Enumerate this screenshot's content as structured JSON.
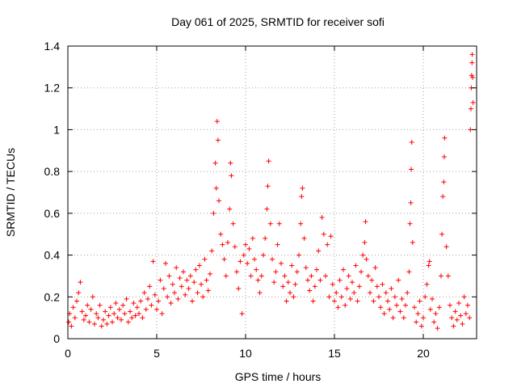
{
  "chart_data": {
    "type": "scatter",
    "title": "Day 061 of 2025, SRMTID for receiver sofi",
    "xlabel": "GPS time / hours",
    "ylabel": "SRMTID / TECUs",
    "xlim": [
      0,
      23
    ],
    "ylim": [
      0,
      1.4
    ],
    "x_ticks": [
      0,
      5,
      10,
      15,
      20
    ],
    "x_tick_labels": [
      "0",
      "5",
      "10",
      "15",
      "20"
    ],
    "y_ticks": [
      0,
      0.2,
      0.4,
      0.6,
      0.8,
      1.0,
      1.2,
      1.4
    ],
    "y_tick_labels": [
      "0",
      "0.2",
      "0.4",
      "0.6",
      "0.8",
      "1",
      "1.2",
      "1.4"
    ],
    "grid": true,
    "marker": "+",
    "color": "#ff0000",
    "series": [
      {
        "name": "SRMTID",
        "points": [
          [
            0.05,
            0.08
          ],
          [
            0.1,
            0.12
          ],
          [
            0.2,
            0.06
          ],
          [
            0.3,
            0.15
          ],
          [
            0.4,
            0.1
          ],
          [
            0.5,
            0.18
          ],
          [
            0.6,
            0.22
          ],
          [
            0.7,
            0.27
          ],
          [
            0.8,
            0.13
          ],
          [
            0.9,
            0.09
          ],
          [
            1.0,
            0.11
          ],
          [
            1.1,
            0.16
          ],
          [
            1.2,
            0.08
          ],
          [
            1.3,
            0.14
          ],
          [
            1.4,
            0.2
          ],
          [
            1.5,
            0.07
          ],
          [
            1.6,
            0.12
          ],
          [
            1.7,
            0.1
          ],
          [
            1.8,
            0.16
          ],
          [
            1.9,
            0.06
          ],
          [
            2.0,
            0.09
          ],
          [
            2.1,
            0.13
          ],
          [
            2.2,
            0.07
          ],
          [
            2.3,
            0.11
          ],
          [
            2.4,
            0.15
          ],
          [
            2.5,
            0.08
          ],
          [
            2.6,
            0.12
          ],
          [
            2.7,
            0.17
          ],
          [
            2.8,
            0.1
          ],
          [
            2.9,
            0.14
          ],
          [
            3.0,
            0.09
          ],
          [
            3.1,
            0.16
          ],
          [
            3.2,
            0.12
          ],
          [
            3.3,
            0.19
          ],
          [
            3.4,
            0.08
          ],
          [
            3.5,
            0.13
          ],
          [
            3.6,
            0.1
          ],
          [
            3.7,
            0.17
          ],
          [
            3.8,
            0.11
          ],
          [
            3.9,
            0.15
          ],
          [
            4.0,
            0.12
          ],
          [
            4.1,
            0.18
          ],
          [
            4.2,
            0.1
          ],
          [
            4.3,
            0.22
          ],
          [
            4.4,
            0.14
          ],
          [
            4.5,
            0.19
          ],
          [
            4.6,
            0.25
          ],
          [
            4.7,
            0.16
          ],
          [
            4.8,
            0.37
          ],
          [
            4.9,
            0.21
          ],
          [
            5.0,
            0.14
          ],
          [
            5.1,
            0.18
          ],
          [
            5.2,
            0.28
          ],
          [
            5.3,
            0.12
          ],
          [
            5.4,
            0.24
          ],
          [
            5.5,
            0.36
          ],
          [
            5.6,
            0.2
          ],
          [
            5.7,
            0.3
          ],
          [
            5.8,
            0.17
          ],
          [
            5.9,
            0.26
          ],
          [
            6.0,
            0.22
          ],
          [
            6.1,
            0.34
          ],
          [
            6.2,
            0.19
          ],
          [
            6.3,
            0.29
          ],
          [
            6.4,
            0.25
          ],
          [
            6.5,
            0.32
          ],
          [
            6.6,
            0.21
          ],
          [
            6.7,
            0.28
          ],
          [
            6.8,
            0.24
          ],
          [
            6.9,
            0.3
          ],
          [
            7.0,
            0.18
          ],
          [
            7.1,
            0.27
          ],
          [
            7.2,
            0.33
          ],
          [
            7.3,
            0.22
          ],
          [
            7.4,
            0.35
          ],
          [
            7.5,
            0.26
          ],
          [
            7.6,
            0.2
          ],
          [
            7.7,
            0.38
          ],
          [
            7.8,
            0.28
          ],
          [
            7.9,
            0.23
          ],
          [
            8.0,
            0.31
          ],
          [
            8.1,
            0.42
          ],
          [
            8.2,
            0.6
          ],
          [
            8.3,
            0.84
          ],
          [
            8.35,
            0.72
          ],
          [
            8.4,
            1.04
          ],
          [
            8.45,
            0.95
          ],
          [
            8.5,
            0.66
          ],
          [
            8.6,
            0.5
          ],
          [
            8.7,
            0.45
          ],
          [
            8.8,
            0.38
          ],
          [
            8.9,
            0.3
          ],
          [
            9.0,
            0.46
          ],
          [
            9.1,
            0.62
          ],
          [
            9.15,
            0.84
          ],
          [
            9.2,
            0.78
          ],
          [
            9.3,
            0.55
          ],
          [
            9.4,
            0.44
          ],
          [
            9.5,
            0.32
          ],
          [
            9.6,
            0.24
          ],
          [
            9.7,
            0.37
          ],
          [
            9.8,
            0.12
          ],
          [
            9.9,
            0.4
          ],
          [
            10.0,
            0.45
          ],
          [
            10.1,
            0.36
          ],
          [
            10.2,
            0.43
          ],
          [
            10.3,
            0.3
          ],
          [
            10.4,
            0.48
          ],
          [
            10.5,
            0.38
          ],
          [
            10.6,
            0.33
          ],
          [
            10.7,
            0.28
          ],
          [
            10.8,
            0.22
          ],
          [
            10.9,
            0.3
          ],
          [
            11.0,
            0.4
          ],
          [
            11.1,
            0.48
          ],
          [
            11.2,
            0.62
          ],
          [
            11.25,
            0.73
          ],
          [
            11.3,
            0.85
          ],
          [
            11.4,
            0.55
          ],
          [
            11.5,
            0.38
          ],
          [
            11.6,
            0.27
          ],
          [
            11.7,
            0.32
          ],
          [
            11.8,
            0.45
          ],
          [
            11.9,
            0.55
          ],
          [
            12.0,
            0.36
          ],
          [
            12.1,
            0.25
          ],
          [
            12.2,
            0.3
          ],
          [
            12.3,
            0.18
          ],
          [
            12.4,
            0.27
          ],
          [
            12.5,
            0.22
          ],
          [
            12.6,
            0.35
          ],
          [
            12.7,
            0.2
          ],
          [
            12.8,
            0.26
          ],
          [
            12.9,
            0.32
          ],
          [
            13.0,
            0.4
          ],
          [
            13.1,
            0.55
          ],
          [
            13.15,
            0.68
          ],
          [
            13.2,
            0.72
          ],
          [
            13.3,
            0.48
          ],
          [
            13.4,
            0.34
          ],
          [
            13.5,
            0.28
          ],
          [
            13.6,
            0.23
          ],
          [
            13.7,
            0.3
          ],
          [
            13.8,
            0.18
          ],
          [
            13.9,
            0.25
          ],
          [
            14.0,
            0.33
          ],
          [
            14.1,
            0.42
          ],
          [
            14.2,
            0.28
          ],
          [
            14.3,
            0.58
          ],
          [
            14.4,
            0.5
          ],
          [
            14.5,
            0.3
          ],
          [
            14.6,
            0.45
          ],
          [
            14.7,
            0.2
          ],
          [
            14.8,
            0.49
          ],
          [
            14.9,
            0.26
          ],
          [
            15.0,
            0.18
          ],
          [
            15.1,
            0.22
          ],
          [
            15.2,
            0.15
          ],
          [
            15.3,
            0.28
          ],
          [
            15.4,
            0.2
          ],
          [
            15.5,
            0.33
          ],
          [
            15.6,
            0.16
          ],
          [
            15.7,
            0.24
          ],
          [
            15.8,
            0.3
          ],
          [
            15.9,
            0.19
          ],
          [
            16.0,
            0.27
          ],
          [
            16.1,
            0.22
          ],
          [
            16.2,
            0.35
          ],
          [
            16.3,
            0.18
          ],
          [
            16.4,
            0.25
          ],
          [
            16.5,
            0.32
          ],
          [
            16.6,
            0.4
          ],
          [
            16.7,
            0.46
          ],
          [
            16.75,
            0.56
          ],
          [
            16.8,
            0.38
          ],
          [
            16.9,
            0.3
          ],
          [
            17.0,
            0.22
          ],
          [
            17.1,
            0.28
          ],
          [
            17.2,
            0.18
          ],
          [
            17.3,
            0.34
          ],
          [
            17.4,
            0.25
          ],
          [
            17.5,
            0.2
          ],
          [
            17.6,
            0.15
          ],
          [
            17.7,
            0.26
          ],
          [
            17.8,
            0.12
          ],
          [
            17.9,
            0.22
          ],
          [
            18.0,
            0.18
          ],
          [
            18.1,
            0.14
          ],
          [
            18.2,
            0.24
          ],
          [
            18.3,
            0.1
          ],
          [
            18.4,
            0.2
          ],
          [
            18.5,
            0.16
          ],
          [
            18.6,
            0.28
          ],
          [
            18.7,
            0.13
          ],
          [
            18.8,
            0.19
          ],
          [
            18.9,
            0.1
          ],
          [
            19.0,
            0.16
          ],
          [
            19.1,
            0.22
          ],
          [
            19.2,
            0.32
          ],
          [
            19.25,
            0.55
          ],
          [
            19.3,
            0.65
          ],
          [
            19.32,
            0.81
          ],
          [
            19.35,
            0.94
          ],
          [
            19.4,
            0.46
          ],
          [
            19.5,
            0.15
          ],
          [
            19.6,
            0.08
          ],
          [
            19.7,
            0.12
          ],
          [
            19.8,
            0.18
          ],
          [
            19.9,
            0.06
          ],
          [
            20.0,
            0.1
          ],
          [
            20.1,
            0.2
          ],
          [
            20.2,
            0.26
          ],
          [
            20.3,
            0.35
          ],
          [
            20.35,
            0.37
          ],
          [
            20.4,
            0.14
          ],
          [
            20.5,
            0.19
          ],
          [
            20.6,
            0.08
          ],
          [
            20.7,
            0.12
          ],
          [
            20.8,
            0.05
          ],
          [
            20.9,
            0.15
          ],
          [
            21.0,
            0.3
          ],
          [
            21.05,
            0.5
          ],
          [
            21.1,
            0.68
          ],
          [
            21.15,
            0.75
          ],
          [
            21.18,
            0.87
          ],
          [
            21.2,
            0.96
          ],
          [
            21.3,
            0.44
          ],
          [
            21.4,
            0.3
          ],
          [
            21.5,
            0.16
          ],
          [
            21.6,
            0.1
          ],
          [
            21.7,
            0.06
          ],
          [
            21.8,
            0.13
          ],
          [
            21.9,
            0.09
          ],
          [
            22.0,
            0.17
          ],
          [
            22.1,
            0.11
          ],
          [
            22.2,
            0.07
          ],
          [
            22.3,
            0.2
          ],
          [
            22.4,
            0.12
          ],
          [
            22.5,
            0.16
          ],
          [
            22.6,
            0.1
          ],
          [
            22.65,
            1.0
          ],
          [
            22.68,
            1.1
          ],
          [
            22.7,
            1.2
          ],
          [
            22.72,
            1.26
          ],
          [
            22.74,
            1.32
          ],
          [
            22.75,
            1.36
          ],
          [
            22.78,
            1.25
          ],
          [
            22.8,
            1.13
          ]
        ]
      }
    ]
  }
}
